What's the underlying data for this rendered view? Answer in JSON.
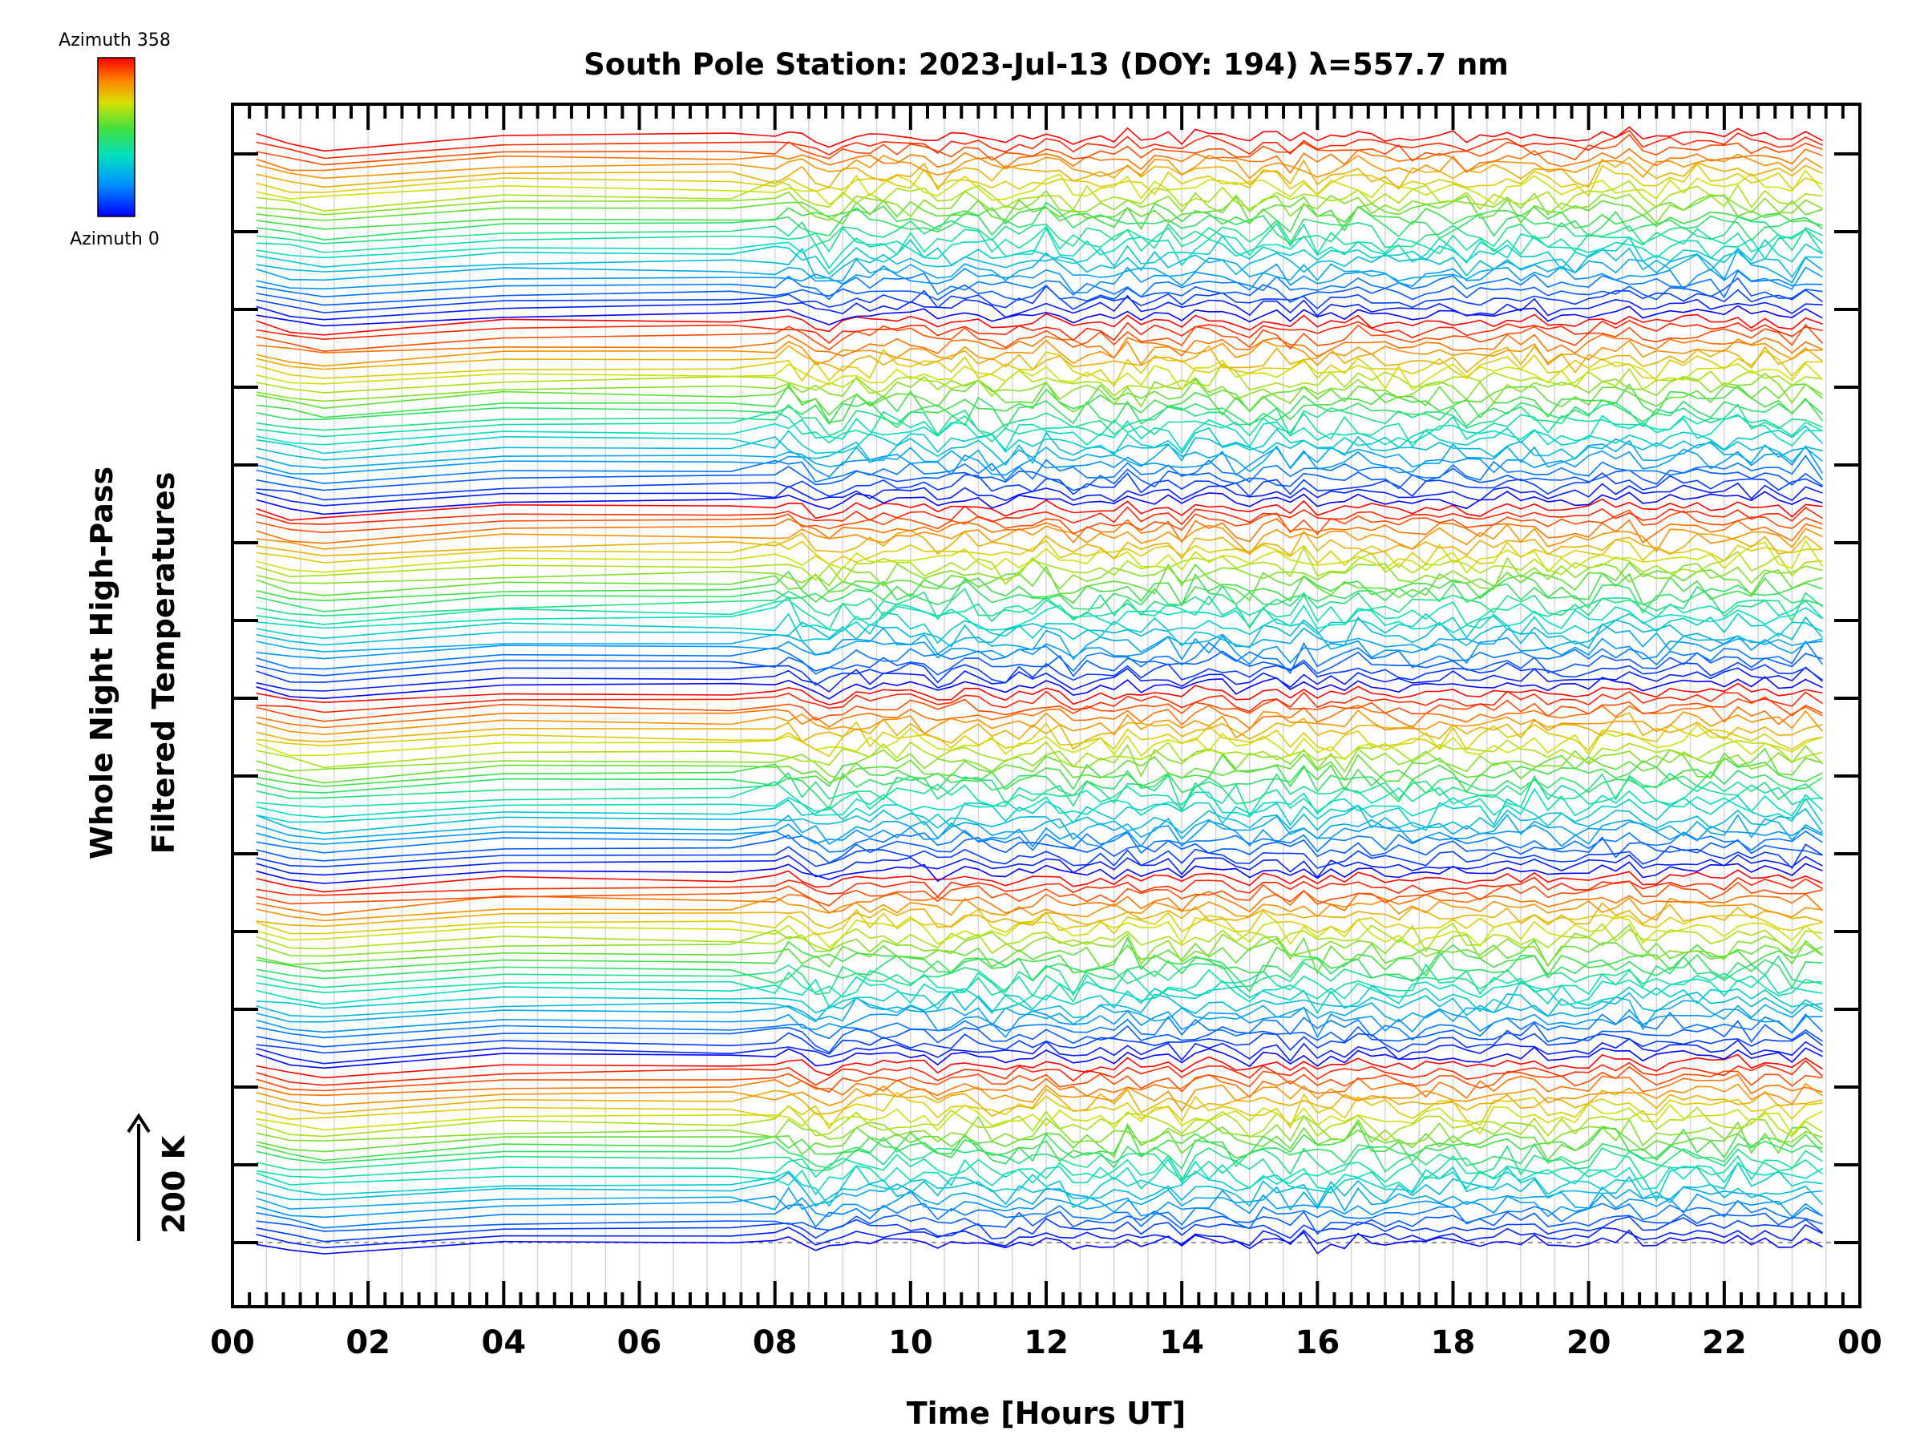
{
  "chart_data": {
    "type": "line",
    "title": "South Pole Station: 2023-Jul-13 (DOY: 194) λ=557.7 nm",
    "xlabel": "Time [Hours UT]",
    "ylabel_line1": "Whole Night High-Pass",
    "ylabel_line2": "Filtered Temperatures",
    "scale_label": "200 K",
    "xlim": [
      0,
      24
    ],
    "x_tick_labels": [
      "00",
      "02",
      "04",
      "06",
      "08",
      "10",
      "12",
      "14",
      "16",
      "18",
      "20",
      "22",
      "00"
    ],
    "colorbar": {
      "top_label": "Azimuth 358",
      "bottom_label": "Azimuth 0",
      "colormap": "rainbow (blue → cyan → green → yellow → red)"
    },
    "grid": "vertical dotted lines every 0.5 h",
    "baseline": "dashed horizontal reference at lowest trace",
    "series_count": 150,
    "series_description": "Stacked temperature traces, azimuth-coloured, repeating blue→red cycles; sparse samples 00–07 UT, dense ~15-min samples 07–24 UT",
    "time_samples": [
      0.35,
      0.85,
      1.35,
      4.0,
      7.35,
      8.0,
      8.2,
      8.4,
      8.6,
      8.8,
      9.0,
      9.2,
      9.4,
      9.6,
      9.8,
      10.0,
      10.2,
      10.4,
      10.6,
      10.8,
      11.0,
      11.2,
      11.4,
      11.6,
      11.8,
      12.0,
      12.2,
      12.4,
      12.6,
      12.8,
      13.0,
      13.2,
      13.4,
      13.6,
      13.8,
      14.0,
      14.2,
      14.4,
      14.6,
      14.8,
      15.0,
      15.2,
      15.4,
      15.6,
      15.8,
      16.0,
      16.2,
      16.4,
      16.6,
      16.8,
      17.0,
      17.2,
      17.4,
      17.6,
      17.8,
      18.0,
      18.2,
      18.4,
      18.6,
      18.8,
      19.0,
      19.2,
      19.4,
      19.6,
      19.8,
      20.0,
      20.2,
      20.4,
      20.6,
      20.8,
      21.0,
      21.2,
      21.4,
      21.6,
      21.8,
      22.0,
      22.2,
      22.4,
      22.6,
      22.8,
      23.0,
      23.2,
      23.45
    ]
  }
}
